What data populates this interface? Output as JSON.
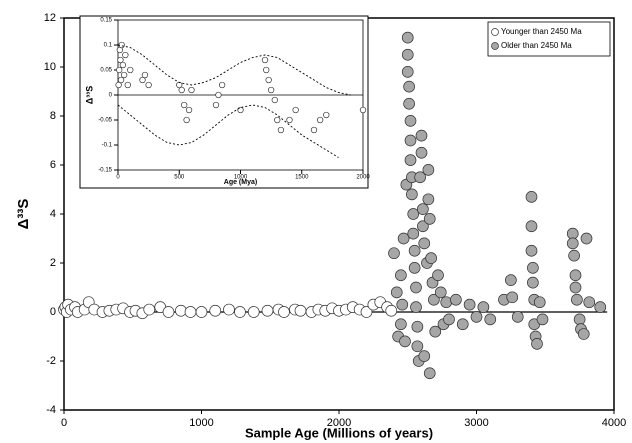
{
  "chart_data": [
    {
      "type": "scatter",
      "xlabel": "Sample Age (Millions of years)",
      "ylabel": "Δ³³S",
      "xlim": [
        0,
        4000
      ],
      "xticks": [
        0,
        1000,
        2000,
        3000,
        4000
      ],
      "ylim": [
        -4,
        12
      ],
      "yticks": [
        -4,
        -2,
        0,
        2,
        4,
        6,
        8,
        10,
        12
      ],
      "legend": "upper right",
      "series": [
        {
          "name": "Younger than 2450 Ma",
          "color": "#ffffff",
          "x": [
            0,
            10,
            20,
            30,
            50,
            80,
            100,
            150,
            180,
            220,
            280,
            330,
            380,
            430,
            480,
            520,
            570,
            620,
            700,
            760,
            850,
            920,
            1000,
            1100,
            1200,
            1280,
            1380,
            1480,
            1560,
            1600,
            1680,
            1720,
            1800,
            1850,
            1900,
            1950,
            2000,
            2050,
            2100,
            2150,
            2200,
            2250,
            2300,
            2350,
            2380
          ],
          "values": [
            0.1,
            0.2,
            0,
            0.3,
            0.1,
            0.2,
            0,
            0.1,
            0.4,
            0.1,
            0,
            0.05,
            0.1,
            0.15,
            0,
            0.05,
            -0.05,
            0.1,
            0.2,
            0,
            0.05,
            0,
            0,
            0.05,
            0.1,
            0,
            0,
            0.05,
            0.1,
            0,
            0.1,
            0.05,
            0,
            0.1,
            0.05,
            0.15,
            0.05,
            0.1,
            0.2,
            0.1,
            0,
            0.3,
            0.4,
            0.2,
            0.05
          ]
        },
        {
          "name": "Older than 2450 Ma",
          "color": "#a6a6a6",
          "x": [
            2400,
            2420,
            2430,
            2450,
            2450,
            2460,
            2470,
            2480,
            2490,
            2500,
            2500,
            2500,
            2510,
            2510,
            2520,
            2520,
            2520,
            2530,
            2530,
            2540,
            2540,
            2550,
            2550,
            2560,
            2560,
            2570,
            2570,
            2580,
            2590,
            2600,
            2600,
            2610,
            2610,
            2620,
            2620,
            2640,
            2650,
            2650,
            2660,
            2660,
            2670,
            2680,
            2690,
            2700,
            2720,
            2740,
            2760,
            2780,
            2800,
            2850,
            2900,
            2950,
            3000,
            3050,
            3100,
            3200,
            3250,
            3260,
            3300,
            3400,
            3400,
            3400,
            3410,
            3410,
            3420,
            3420,
            3430,
            3440,
            3460,
            3480,
            3700,
            3700,
            3710,
            3720,
            3720,
            3730,
            3750,
            3760,
            3780,
            3800,
            3820,
            3900
          ],
          "values": [
            2.4,
            0.8,
            -1,
            1.5,
            -0.5,
            0.3,
            3,
            -1.2,
            5.2,
            11.2,
            10.5,
            9.8,
            9.2,
            8.5,
            7.8,
            7,
            6.2,
            5.5,
            4.8,
            4,
            3.2,
            2.5,
            1.8,
            1,
            0.2,
            -0.6,
            -1.4,
            -2,
            5.5,
            7.2,
            6.5,
            4.2,
            3.5,
            2.8,
            -1.8,
            2,
            5.8,
            4.6,
            3.8,
            -2.5,
            2.2,
            1.2,
            0.5,
            -0.8,
            1.5,
            0.8,
            -0.5,
            0.4,
            -0.3,
            0.5,
            -0.5,
            0.3,
            -0.2,
            0.2,
            -0.3,
            0.5,
            1.3,
            0.6,
            -0.2,
            4.7,
            3.5,
            2.5,
            1.8,
            1.2,
            0.5,
            -0.5,
            -1,
            -1.3,
            0.4,
            -0.3,
            3.2,
            2.8,
            2.3,
            1.5,
            1,
            0.5,
            -0.3,
            -0.7,
            -0.9,
            3,
            0.4,
            0.2
          ]
        }
      ]
    },
    {
      "type": "scatter",
      "xlabel": "Age (Mya)",
      "ylabel": "Δ³³S",
      "xlim": [
        0,
        2000
      ],
      "xticks": [
        0,
        500,
        1000,
        1500,
        2000
      ],
      "ylim": [
        -0.15,
        0.15
      ],
      "yticks": [
        -0.15,
        -0.1,
        -0.05,
        0,
        0.05,
        0.1,
        0.15
      ],
      "series": [
        {
          "color": "#ffffff",
          "x": [
            5,
            10,
            15,
            20,
            25,
            30,
            40,
            50,
            60,
            80,
            100,
            200,
            220,
            250,
            500,
            520,
            540,
            560,
            580,
            600,
            800,
            820,
            850,
            1000,
            1200,
            1210,
            1230,
            1250,
            1280,
            1300,
            1330,
            1400,
            1450,
            1600,
            1650,
            1700,
            2000
          ],
          "values": [
            0.02,
            0.05,
            0.09,
            0.07,
            0.03,
            0.1,
            0.06,
            0.04,
            0.08,
            0.02,
            0.05,
            0.03,
            0.04,
            0.02,
            0.02,
            0.01,
            -0.02,
            -0.05,
            -0.03,
            0.01,
            -0.02,
            0,
            0.02,
            -0.03,
            0.07,
            0.05,
            0.03,
            0.01,
            -0.01,
            -0.05,
            -0.07,
            -0.05,
            -0.03,
            -0.07,
            -0.05,
            -0.04,
            -0.03
          ]
        },
        {
          "color": "#000000",
          "style": "dashed",
          "x": [
            0,
            100,
            200,
            300,
            400,
            500,
            600,
            700,
            800,
            900,
            1000,
            1100,
            1200,
            1300,
            1400,
            1500,
            1600,
            1700,
            1800,
            1900
          ],
          "values": [
            0.1,
            0.095,
            0.08,
            0.06,
            0.04,
            0.025,
            0.02,
            0.025,
            0.035,
            0.05,
            0.065,
            0.075,
            0.08,
            0.075,
            0.06,
            0.045,
            0.03,
            0.015,
            0.005,
            0
          ]
        },
        {
          "color": "#000000",
          "style": "dashed",
          "x": [
            0,
            100,
            200,
            300,
            400,
            500,
            600,
            700,
            800,
            900,
            1000,
            1100,
            1200,
            1300,
            1400,
            1500,
            1600,
            1700,
            1800
          ],
          "values": [
            -0.02,
            -0.04,
            -0.06,
            -0.08,
            -0.095,
            -0.1,
            -0.095,
            -0.08,
            -0.06,
            -0.04,
            -0.025,
            -0.02,
            -0.025,
            -0.04,
            -0.06,
            -0.08,
            -0.095,
            -0.11,
            -0.125
          ]
        }
      ]
    }
  ]
}
